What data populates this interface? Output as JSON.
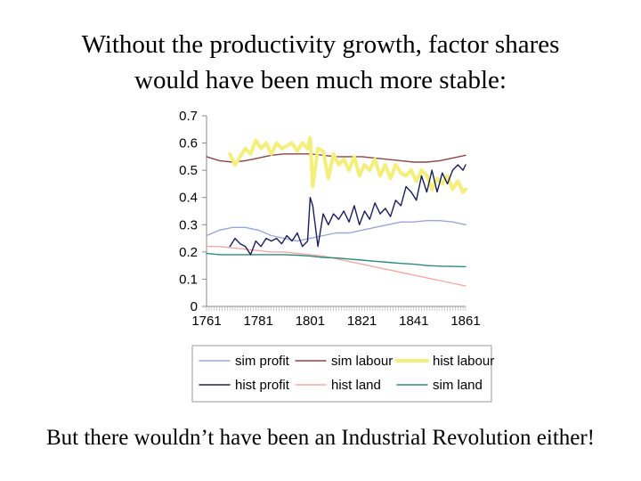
{
  "slide": {
    "title_line1": "Without the productivity growth, factor shares",
    "title_line2": "would have been much more stable:",
    "caption": "But there wouldn’t have been an Industrial Revolution either!"
  },
  "chart_data": {
    "type": "line",
    "title": "",
    "xlabel": "",
    "ylabel": "",
    "xlim": [
      1761,
      1861
    ],
    "ylim": [
      0,
      0.7
    ],
    "x_ticks": [
      "1761",
      "1781",
      "1801",
      "1821",
      "1841",
      "1861"
    ],
    "y_ticks": [
      "0",
      "0.1",
      "0.2",
      "0.3",
      "0.4",
      "0.5",
      "0.6",
      "0.7"
    ],
    "grid": false,
    "legend_position": "bottom",
    "series": [
      {
        "name": "sim profit",
        "color": "#9aa7d6",
        "width": 1.4,
        "x": [
          1761,
          1766,
          1771,
          1776,
          1781,
          1786,
          1791,
          1796,
          1801,
          1806,
          1811,
          1816,
          1821,
          1826,
          1831,
          1836,
          1841,
          1846,
          1851,
          1856,
          1861
        ],
        "y": [
          0.26,
          0.28,
          0.29,
          0.29,
          0.28,
          0.26,
          0.25,
          0.24,
          0.25,
          0.26,
          0.27,
          0.27,
          0.28,
          0.29,
          0.3,
          0.31,
          0.31,
          0.315,
          0.315,
          0.31,
          0.3
        ]
      },
      {
        "name": "sim labour",
        "color": "#8a4545",
        "width": 1.4,
        "x": [
          1761,
          1766,
          1771,
          1776,
          1781,
          1786,
          1791,
          1796,
          1801,
          1806,
          1811,
          1816,
          1821,
          1826,
          1831,
          1836,
          1841,
          1846,
          1851,
          1856,
          1861
        ],
        "y": [
          0.55,
          0.535,
          0.53,
          0.535,
          0.545,
          0.555,
          0.56,
          0.56,
          0.56,
          0.555,
          0.55,
          0.55,
          0.55,
          0.545,
          0.54,
          0.535,
          0.53,
          0.53,
          0.535,
          0.545,
          0.555
        ]
      },
      {
        "name": "hist labour",
        "color": "#f3ef7a",
        "width": 4,
        "x": [
          1770,
          1772,
          1774,
          1776,
          1778,
          1780,
          1782,
          1784,
          1786,
          1788,
          1790,
          1792,
          1794,
          1796,
          1798,
          1800,
          1801,
          1802,
          1804,
          1806,
          1808,
          1810,
          1812,
          1814,
          1816,
          1818,
          1820,
          1822,
          1824,
          1826,
          1828,
          1830,
          1832,
          1834,
          1836,
          1838,
          1840,
          1842,
          1844,
          1846,
          1848,
          1850,
          1852,
          1854,
          1856,
          1858,
          1860,
          1861
        ],
        "y": [
          0.56,
          0.52,
          0.55,
          0.58,
          0.56,
          0.61,
          0.58,
          0.6,
          0.56,
          0.6,
          0.58,
          0.59,
          0.6,
          0.57,
          0.6,
          0.58,
          0.62,
          0.44,
          0.58,
          0.57,
          0.47,
          0.56,
          0.52,
          0.54,
          0.5,
          0.55,
          0.48,
          0.52,
          0.5,
          0.54,
          0.48,
          0.52,
          0.47,
          0.52,
          0.49,
          0.48,
          0.5,
          0.46,
          0.5,
          0.48,
          0.43,
          0.47,
          0.45,
          0.48,
          0.43,
          0.46,
          0.42,
          0.43
        ]
      },
      {
        "name": "hist profit",
        "color": "#1b1e5c",
        "width": 1.4,
        "x": [
          1770,
          1772,
          1774,
          1776,
          1778,
          1780,
          1782,
          1784,
          1786,
          1788,
          1790,
          1792,
          1794,
          1796,
          1798,
          1800,
          1801,
          1802,
          1804,
          1806,
          1808,
          1810,
          1812,
          1814,
          1816,
          1818,
          1820,
          1822,
          1824,
          1826,
          1828,
          1830,
          1832,
          1834,
          1836,
          1838,
          1840,
          1842,
          1844,
          1846,
          1848,
          1850,
          1852,
          1854,
          1856,
          1858,
          1860,
          1861
        ],
        "y": [
          0.22,
          0.25,
          0.23,
          0.22,
          0.19,
          0.24,
          0.22,
          0.25,
          0.24,
          0.25,
          0.23,
          0.26,
          0.24,
          0.27,
          0.22,
          0.24,
          0.4,
          0.37,
          0.22,
          0.34,
          0.3,
          0.34,
          0.32,
          0.35,
          0.31,
          0.37,
          0.3,
          0.35,
          0.32,
          0.38,
          0.34,
          0.36,
          0.33,
          0.39,
          0.37,
          0.44,
          0.42,
          0.39,
          0.48,
          0.42,
          0.5,
          0.42,
          0.49,
          0.45,
          0.5,
          0.52,
          0.5,
          0.52
        ]
      },
      {
        "name": "hist land",
        "color": "#efaaaa",
        "width": 1.4,
        "x": [
          1761,
          1766,
          1771,
          1776,
          1781,
          1786,
          1791,
          1796,
          1801,
          1806,
          1811,
          1816,
          1821,
          1826,
          1831,
          1836,
          1841,
          1846,
          1851,
          1856,
          1861
        ],
        "y": [
          0.22,
          0.22,
          0.215,
          0.21,
          0.205,
          0.2,
          0.2,
          0.195,
          0.19,
          0.185,
          0.175,
          0.165,
          0.155,
          0.145,
          0.135,
          0.125,
          0.115,
          0.105,
          0.095,
          0.085,
          0.075
        ]
      },
      {
        "name": "sim land",
        "color": "#2e8a7a",
        "width": 1.4,
        "x": [
          1761,
          1766,
          1771,
          1776,
          1781,
          1786,
          1791,
          1796,
          1801,
          1806,
          1811,
          1816,
          1821,
          1826,
          1831,
          1836,
          1841,
          1846,
          1851,
          1856,
          1861
        ],
        "y": [
          0.195,
          0.19,
          0.19,
          0.19,
          0.19,
          0.19,
          0.19,
          0.188,
          0.185,
          0.18,
          0.178,
          0.174,
          0.17,
          0.166,
          0.162,
          0.158,
          0.155,
          0.15,
          0.148,
          0.147,
          0.146
        ]
      }
    ],
    "legend": {
      "rows": [
        [
          "sim profit",
          "sim labour",
          "hist labour"
        ],
        [
          "hist profit",
          "hist land",
          "sim land"
        ]
      ]
    }
  }
}
